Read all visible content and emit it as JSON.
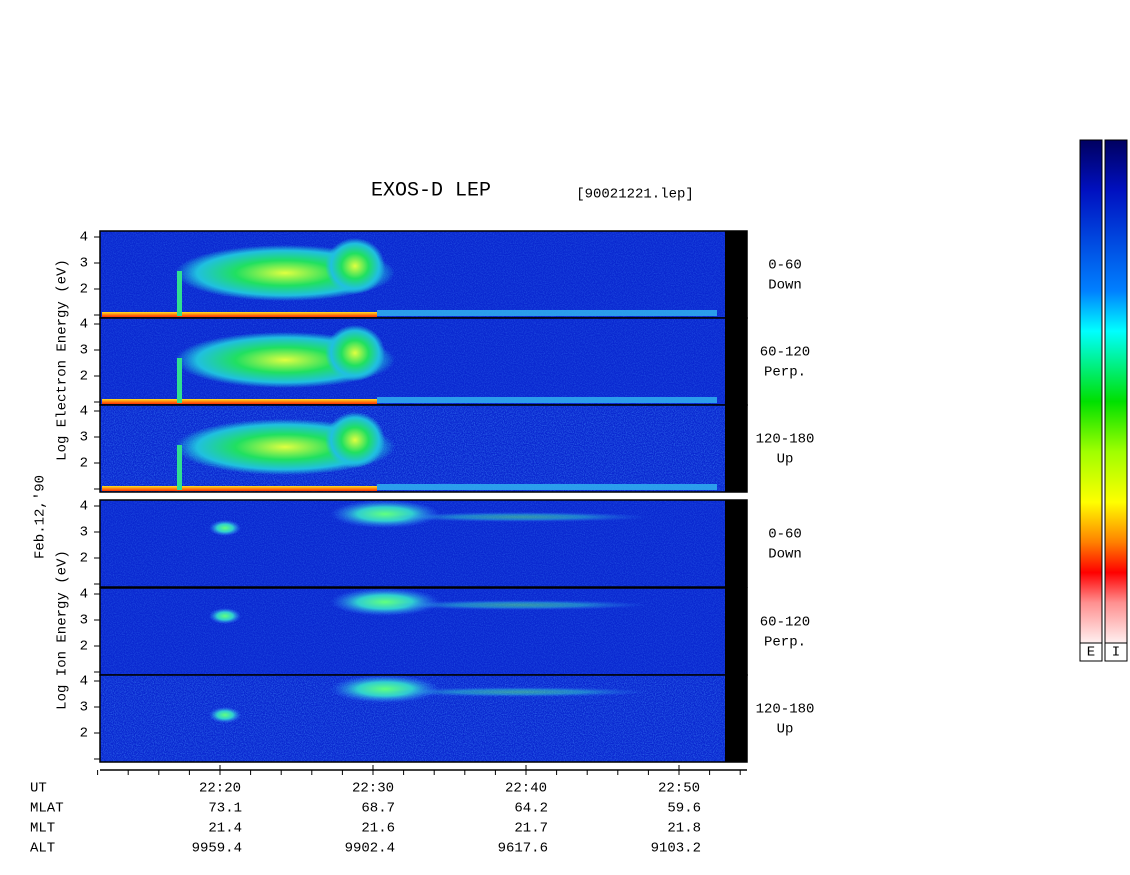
{
  "title": "EXOS-D LEP",
  "file": "[90021221.lep]",
  "date": "Feb.12,'90",
  "electron": {
    "axis_label": "Log Electron Energy (eV)",
    "yticks": [
      "4",
      "3",
      "2"
    ],
    "panels": [
      {
        "pitch": "0-60",
        "direction": "Down"
      },
      {
        "pitch": "60-120",
        "direction": "Perp."
      },
      {
        "pitch": "120-180",
        "direction": "Up"
      }
    ]
  },
  "ion": {
    "axis_label": "Log Ion Energy (eV)",
    "yticks": [
      "4",
      "3",
      "2"
    ],
    "panels": [
      {
        "pitch": "0-60",
        "direction": "Down"
      },
      {
        "pitch": "60-120",
        "direction": "Perp."
      },
      {
        "pitch": "120-180",
        "direction": "Up"
      }
    ]
  },
  "time": {
    "label": "UT",
    "ticks": [
      "22:20",
      "22:30",
      "22:40",
      "22:50"
    ],
    "rows": [
      {
        "label": "MLAT",
        "values": [
          "73.1",
          "68.7",
          "64.2",
          "59.6"
        ]
      },
      {
        "label": "MLT",
        "values": [
          "21.4",
          "21.6",
          "21.7",
          "21.8"
        ]
      },
      {
        "label": "ALT",
        "values": [
          "9959.4",
          "9902.4",
          "9617.6",
          "9103.2"
        ]
      }
    ]
  },
  "colorbar": {
    "labels": [
      "E",
      "I"
    ]
  }
}
